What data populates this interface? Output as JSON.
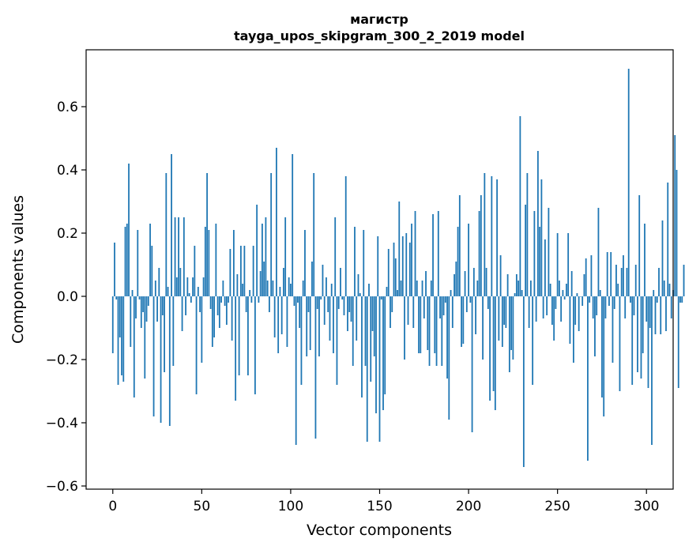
{
  "chart_data": {
    "type": "bar",
    "title": "магистр",
    "subtitle": "tayga_upos_skipgram_300_2_2019 model",
    "xlabel": "Vector components",
    "ylabel": "Components values",
    "xlim": [
      -15,
      315
    ],
    "ylim": [
      -0.61,
      0.78
    ],
    "xticks": [
      0,
      50,
      100,
      150,
      200,
      250,
      300
    ],
    "yticks": [
      -0.6,
      -0.4,
      -0.2,
      0.0,
      0.2,
      0.4,
      0.6
    ],
    "ytick_labels": [
      "−0.6",
      "−0.4",
      "−0.2",
      "0.0",
      "0.2",
      "0.4",
      "0.6"
    ],
    "grid": false,
    "bar_color": "#1f77b4",
    "values": [
      -0.18,
      0.17,
      -0.01,
      -0.28,
      -0.13,
      -0.25,
      -0.27,
      0.22,
      0.23,
      0.42,
      -0.16,
      0.02,
      -0.32,
      -0.07,
      0.21,
      -0.01,
      -0.1,
      -0.05,
      -0.26,
      -0.08,
      -0.03,
      0.23,
      0.16,
      -0.38,
      0.05,
      -0.08,
      0.09,
      -0.4,
      -0.06,
      -0.24,
      0.39,
      0.03,
      -0.41,
      0.45,
      -0.22,
      0.25,
      0.06,
      0.25,
      0.09,
      -0.11,
      0.25,
      -0.06,
      0.06,
      0.01,
      -0.02,
      0.06,
      0.16,
      -0.31,
      0.03,
      -0.05,
      -0.21,
      0.06,
      0.22,
      0.39,
      0.21,
      -0.04,
      -0.16,
      -0.13,
      0.23,
      -0.06,
      -0.1,
      -0.02,
      0.05,
      -0.03,
      -0.09,
      -0.02,
      0.15,
      -0.14,
      0.21,
      -0.33,
      0.07,
      -0.25,
      0.16,
      0.04,
      0.16,
      -0.05,
      -0.25,
      0.02,
      -0.02,
      0.16,
      -0.31,
      0.29,
      -0.02,
      0.08,
      0.23,
      0.11,
      0.25,
      0.05,
      -0.05,
      0.39,
      0.05,
      -0.13,
      0.47,
      -0.18,
      0.03,
      -0.12,
      0.09,
      0.25,
      -0.16,
      0.06,
      0.04,
      0.45,
      -0.03,
      -0.47,
      -0.02,
      -0.1,
      -0.28,
      0.05,
      0.21,
      -0.19,
      -0.05,
      -0.17,
      0.11,
      0.39,
      -0.45,
      -0.04,
      -0.19,
      -0.01,
      0.1,
      -0.09,
      0.06,
      -0.05,
      -0.14,
      0.04,
      -0.18,
      0.25,
      -0.28,
      -0.04,
      0.09,
      -0.01,
      -0.06,
      0.38,
      -0.11,
      -0.05,
      -0.08,
      -0.22,
      0.22,
      -0.14,
      0.07,
      0.01,
      -0.32,
      0.21,
      -0.22,
      -0.46,
      0.04,
      -0.27,
      -0.11,
      -0.19,
      -0.37,
      0.19,
      -0.46,
      -0.01,
      -0.36,
      -0.31,
      0.03,
      0.15,
      -0.1,
      -0.05,
      0.17,
      0.12,
      0.02,
      0.3,
      0.05,
      0.19,
      -0.2,
      0.2,
      -0.09,
      0.17,
      0.23,
      -0.1,
      0.27,
      0.05,
      -0.18,
      -0.18,
      0.05,
      -0.07,
      0.08,
      -0.17,
      -0.22,
      0.05,
      0.26,
      -0.18,
      -0.22,
      0.27,
      -0.07,
      -0.22,
      -0.06,
      -0.02,
      -0.26,
      -0.39,
      0.02,
      -0.1,
      0.07,
      0.11,
      0.22,
      0.32,
      -0.16,
      -0.15,
      0.08,
      -0.05,
      0.23,
      -0.02,
      -0.43,
      0.09,
      -0.12,
      0.05,
      0.27,
      0.32,
      -0.2,
      0.39,
      0.09,
      -0.04,
      -0.33,
      0.38,
      -0.3,
      -0.36,
      0.37,
      -0.14,
      0.13,
      -0.16,
      -0.09,
      -0.1,
      0.07,
      -0.24,
      -0.17,
      -0.2,
      0.01,
      0.07,
      0.05,
      0.57,
      0.02,
      -0.54,
      0.29,
      0.39,
      -0.1,
      0.05,
      -0.28,
      0.27,
      -0.08,
      0.46,
      0.22,
      0.37,
      -0.07,
      0.18,
      -0.06,
      0.28,
      0.04,
      -0.09,
      -0.14,
      -0.04,
      0.2,
      0.05,
      -0.08,
      0.02,
      -0.01,
      0.04,
      0.2,
      -0.15,
      0.08,
      -0.21,
      -0.09,
      0.01,
      -0.11,
      0.0,
      -0.03,
      0.07,
      0.12,
      -0.52,
      -0.02,
      0.13,
      -0.07,
      -0.19,
      -0.06,
      0.28,
      0.02,
      -0.32,
      -0.38,
      -0.07,
      0.14,
      -0.03,
      0.14,
      -0.21,
      -0.04,
      0.1,
      0.04,
      -0.3,
      0.09,
      0.13,
      -0.07,
      0.09,
      0.72,
      -0.02,
      -0.28,
      -0.06,
      0.1,
      -0.24,
      0.32,
      -0.26,
      -0.18,
      0.23,
      -0.08,
      -0.29,
      -0.1,
      -0.47,
      0.02,
      -0.12,
      -0.02,
      0.09,
      -0.12,
      0.24,
      0.05,
      -0.11,
      0.36,
      0.04,
      -0.07,
      0.02,
      0.51,
      0.4,
      -0.29,
      -0.02,
      -0.02,
      0.1
    ]
  }
}
